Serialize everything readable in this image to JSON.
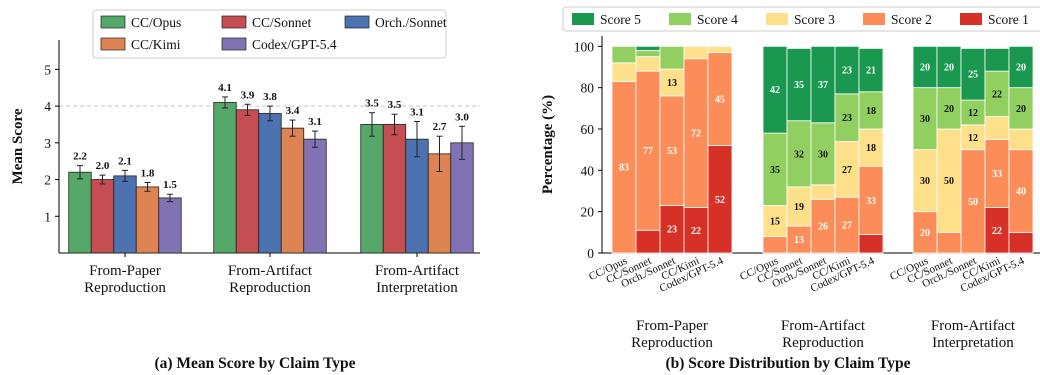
{
  "colors": {
    "CC/Opus": "#55a868",
    "CC/Sonnet": "#c44e52",
    "Orch./Sonnet": "#4c72b0",
    "CC/Kimi": "#dd8452",
    "Codex/GPT-5.4": "#8172b3",
    "Score 5": "#1a9850",
    "Score 4": "#91cf60",
    "Score 3": "#fee08b",
    "Score 2": "#fc8d59",
    "Score 1": "#d73027"
  },
  "chart_data": [
    {
      "type": "bar",
      "caption": "(a) Mean Score by Claim Type",
      "ylabel": "Mean Score",
      "ylim": [
        0,
        5.8
      ],
      "yticks": [
        "1",
        "2",
        "3",
        "4",
        "5"
      ],
      "reference_line": 4,
      "legend_placement": "top-center",
      "categories": [
        [
          "From-Paper",
          "Reproduction"
        ],
        [
          "From-Artifact",
          "Reproduction"
        ],
        [
          "From-Artifact",
          "Interpretation"
        ]
      ],
      "series": [
        {
          "name": "CC/Opus",
          "values": [
            2.2,
            4.1,
            3.5
          ],
          "labels": [
            "2.2",
            "4.1",
            "3.5"
          ],
          "errors": [
            0.18,
            0.15,
            0.32
          ]
        },
        {
          "name": "CC/Sonnet",
          "values": [
            2.0,
            3.9,
            3.5
          ],
          "labels": [
            "2.0",
            "3.9",
            "3.5"
          ],
          "errors": [
            0.12,
            0.15,
            0.28
          ]
        },
        {
          "name": "Orch./Sonnet",
          "values": [
            2.1,
            3.8,
            3.1
          ],
          "labels": [
            "2.1",
            "3.8",
            "3.1"
          ],
          "errors": [
            0.15,
            0.2,
            0.48
          ]
        },
        {
          "name": "CC/Kimi",
          "values": [
            1.8,
            3.4,
            2.7
          ],
          "labels": [
            "1.8",
            "3.4",
            "2.7"
          ],
          "errors": [
            0.12,
            0.22,
            0.48
          ]
        },
        {
          "name": "Codex/GPT-5.4",
          "values": [
            1.5,
            3.1,
            3.0
          ],
          "labels": [
            "1.5",
            "3.1",
            "3.0"
          ],
          "errors": [
            0.1,
            0.22,
            0.45
          ]
        }
      ]
    },
    {
      "type": "bar",
      "stacked": true,
      "caption": "(b) Score Distribution by Claim Type",
      "ylabel": "Percentage (%)",
      "ylim": [
        0,
        105
      ],
      "yticks": [
        "0",
        "20",
        "40",
        "60",
        "80",
        "100"
      ],
      "legend_placement": "top",
      "stack_order": [
        "Score 1",
        "Score 2",
        "Score 3",
        "Score 4",
        "Score 5"
      ],
      "legend": [
        "Score 5",
        "Score 4",
        "Score 3",
        "Score 2",
        "Score 1"
      ],
      "bar_labels": [
        "CC/Opus",
        "CC/Sonnet",
        "Orch./Sonnet",
        "CC/Kimi",
        "Codex/GPT-5.4"
      ],
      "groups": [
        {
          "name": [
            "From-Paper",
            "Reproduction"
          ],
          "bars": [
            {
              "Score 1": 0,
              "Score 2": 83,
              "Score 3": 9,
              "Score 4": 8,
              "Score 5": 0
            },
            {
              "Score 1": 11,
              "Score 2": 77,
              "Score 3": 7,
              "Score 4": 3,
              "Score 5": 2
            },
            {
              "Score 1": 23,
              "Score 2": 53,
              "Score 3": 13,
              "Score 4": 11,
              "Score 5": 0
            },
            {
              "Score 1": 22,
              "Score 2": 72,
              "Score 3": 6,
              "Score 4": 0,
              "Score 5": 0
            },
            {
              "Score 1": 52,
              "Score 2": 45,
              "Score 3": 3,
              "Score 4": 0,
              "Score 5": 0
            }
          ]
        },
        {
          "name": [
            "From-Artifact",
            "Reproduction"
          ],
          "bars": [
            {
              "Score 1": 0,
              "Score 2": 8,
              "Score 3": 15,
              "Score 4": 35,
              "Score 5": 42
            },
            {
              "Score 1": 0,
              "Score 2": 13,
              "Score 3": 19,
              "Score 4": 32,
              "Score 5": 35
            },
            {
              "Score 1": 0,
              "Score 2": 26,
              "Score 3": 7,
              "Score 4": 30,
              "Score 5": 37
            },
            {
              "Score 1": 0,
              "Score 2": 27,
              "Score 3": 27,
              "Score 4": 23,
              "Score 5": 23
            },
            {
              "Score 1": 9,
              "Score 2": 33,
              "Score 3": 18,
              "Score 4": 18,
              "Score 5": 21
            }
          ]
        },
        {
          "name": [
            "From-Artifact",
            "Interpretation"
          ],
          "bars": [
            {
              "Score 1": 0,
              "Score 2": 20,
              "Score 3": 30,
              "Score 4": 30,
              "Score 5": 20
            },
            {
              "Score 1": 0,
              "Score 2": 10,
              "Score 3": 50,
              "Score 4": 20,
              "Score 5": 20
            },
            {
              "Score 1": 0,
              "Score 2": 50,
              "Score 3": 12,
              "Score 4": 12,
              "Score 5": 25
            },
            {
              "Score 1": 22,
              "Score 2": 33,
              "Score 3": 11,
              "Score 4": 22,
              "Score 5": 11
            },
            {
              "Score 1": 10,
              "Score 2": 40,
              "Score 3": 10,
              "Score 4": 20,
              "Score 5": 20
            }
          ]
        }
      ]
    }
  ]
}
